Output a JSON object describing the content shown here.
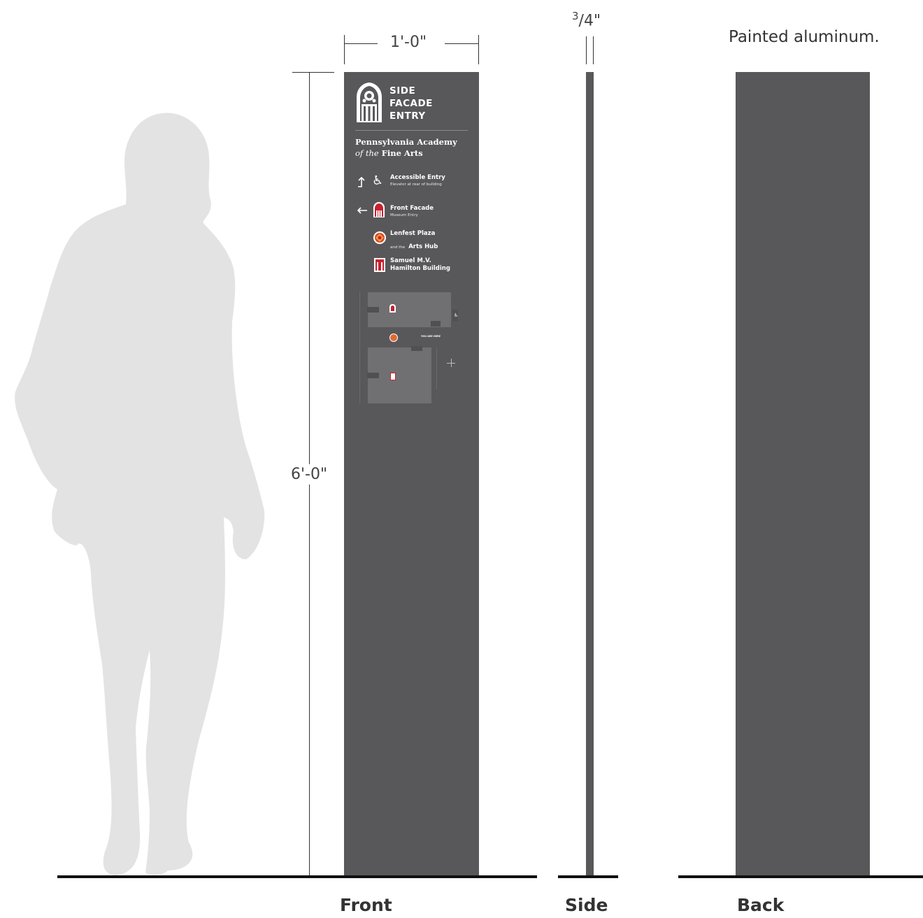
{
  "dimensions": {
    "width_label": "1'-0\"",
    "height_label": "6'-0\"",
    "depth_label_num": "3",
    "depth_label_rest": "/4\""
  },
  "note": "Painted aluminum.",
  "views": {
    "front": "Front",
    "side": "Side",
    "back": "Back"
  },
  "sign": {
    "title_lines": [
      "SIDE",
      "FACADE",
      "ENTRY"
    ],
    "institution_line1": "Pennsylvania Academy",
    "institution_line2_italic": "of the",
    "institution_line2": "Fine Arts",
    "directions": [
      {
        "title": "Accessible Entry",
        "subtitle": "Elevator at rear of building",
        "arrow": "up-arrow",
        "icon": "accessibility-icon"
      },
      {
        "title": "Front Facade",
        "subtitle": "Museum Entry",
        "arrow": "left-arrow",
        "icon": "facade-icon"
      },
      {
        "title": "Lenfest Plaza",
        "subtitle_prefix": "and the",
        "subtitle_bold": "Arts Hub",
        "icon": "plaza-icon"
      },
      {
        "title": "Samuel M.V.",
        "title2": "Hamilton Building",
        "icon": "hamilton-icon"
      }
    ],
    "map": {
      "you_are_here": "YOU ARE HERE"
    }
  },
  "colors": {
    "sign_panel": "#58585a",
    "accent_red": "#c8202f",
    "silhouette": "#e3e3e3"
  }
}
